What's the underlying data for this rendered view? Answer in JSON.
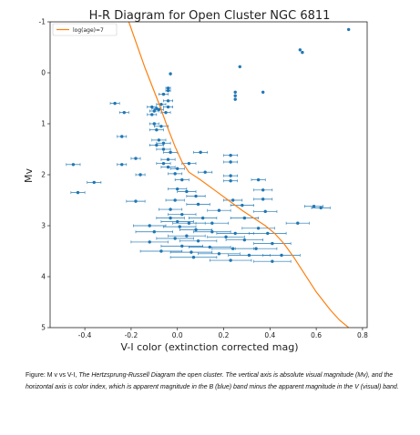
{
  "chart_data": {
    "type": "scatter",
    "title": "H-R Diagram for Open Cluster NGC 6811",
    "xlabel": "V-I color (extinction corrected mag)",
    "ylabel": "Mv",
    "xlim": [
      -0.55,
      0.82
    ],
    "ylim": [
      5,
      -1
    ],
    "y_inverted": true,
    "x_ticks": [
      "-0.4",
      "-0.2",
      "0.0",
      "0.2",
      "0.4",
      "0.6",
      "0.8"
    ],
    "y_ticks": [
      "-1",
      "0",
      "1",
      "2",
      "3",
      "4",
      "5"
    ],
    "grid": false,
    "legend_position": "top-left",
    "colors": {
      "points": "#1f77b4",
      "isochrone": "#ff7f0e"
    },
    "isochrone": {
      "name": "log(age)=7",
      "x": [
        -0.21,
        -0.14,
        -0.08,
        -0.04,
        -0.01,
        0.02,
        0.05,
        0.1,
        0.16,
        0.22,
        0.28,
        0.33,
        0.38,
        0.42,
        0.46,
        0.5,
        0.55,
        0.6,
        0.66,
        0.7,
        0.74
      ],
      "y": [
        -1.0,
        -0.1,
        0.6,
        1.1,
        1.45,
        1.75,
        1.95,
        2.1,
        2.3,
        2.5,
        2.7,
        2.85,
        3.0,
        3.15,
        3.35,
        3.6,
        3.95,
        4.3,
        4.65,
        4.85,
        5.0
      ]
    },
    "points": [
      {
        "x": 0.74,
        "y": -0.85,
        "xerr": 0.0
      },
      {
        "x": 0.53,
        "y": -0.45,
        "xerr": 0.0
      },
      {
        "x": 0.54,
        "y": -0.4,
        "xerr": 0.0
      },
      {
        "x": 0.27,
        "y": -0.12,
        "xerr": 0.0
      },
      {
        "x": -0.03,
        "y": 0.02,
        "xerr": 0.0
      },
      {
        "x": 0.25,
        "y": 0.38,
        "xerr": 0.0
      },
      {
        "x": 0.25,
        "y": 0.45,
        "xerr": 0.0
      },
      {
        "x": 0.25,
        "y": 0.52,
        "xerr": 0.0
      },
      {
        "x": 0.37,
        "y": 0.38,
        "xerr": 0.0
      },
      {
        "x": -0.04,
        "y": 0.3,
        "xerr": 0.01
      },
      {
        "x": -0.04,
        "y": 0.35,
        "xerr": 0.01
      },
      {
        "x": -0.06,
        "y": 0.42,
        "xerr": 0.02
      },
      {
        "x": -0.04,
        "y": 0.55,
        "xerr": 0.02
      },
      {
        "x": -0.07,
        "y": 0.62,
        "xerr": 0.02
      },
      {
        "x": -0.04,
        "y": 0.67,
        "xerr": 0.02
      },
      {
        "x": -0.11,
        "y": 0.67,
        "xerr": 0.02
      },
      {
        "x": -0.09,
        "y": 0.7,
        "xerr": 0.02
      },
      {
        "x": -0.08,
        "y": 0.72,
        "xerr": 0.02
      },
      {
        "x": -0.1,
        "y": 0.75,
        "xerr": 0.02
      },
      {
        "x": -0.05,
        "y": 0.78,
        "xerr": 0.02
      },
      {
        "x": -0.11,
        "y": 0.82,
        "xerr": 0.02
      },
      {
        "x": -0.27,
        "y": 0.6,
        "xerr": 0.02
      },
      {
        "x": -0.23,
        "y": 0.78,
        "xerr": 0.02
      },
      {
        "x": -0.1,
        "y": 1.0,
        "xerr": 0.02
      },
      {
        "x": -0.07,
        "y": 1.05,
        "xerr": 0.03
      },
      {
        "x": -0.09,
        "y": 1.12,
        "xerr": 0.03
      },
      {
        "x": -0.24,
        "y": 1.25,
        "xerr": 0.02
      },
      {
        "x": -0.08,
        "y": 1.32,
        "xerr": 0.03
      },
      {
        "x": -0.06,
        "y": 1.38,
        "xerr": 0.03
      },
      {
        "x": -0.09,
        "y": 1.42,
        "xerr": 0.03
      },
      {
        "x": -0.06,
        "y": 1.5,
        "xerr": 0.03
      },
      {
        "x": -0.03,
        "y": 1.56,
        "xerr": 0.03
      },
      {
        "x": 0.1,
        "y": 1.56,
        "xerr": 0.03
      },
      {
        "x": 0.23,
        "y": 1.62,
        "xerr": 0.03
      },
      {
        "x": -0.18,
        "y": 1.68,
        "xerr": 0.02
      },
      {
        "x": -0.04,
        "y": 1.7,
        "xerr": 0.03
      },
      {
        "x": -0.06,
        "y": 1.78,
        "xerr": 0.03
      },
      {
        "x": 0.05,
        "y": 1.78,
        "xerr": 0.03
      },
      {
        "x": 0.23,
        "y": 1.75,
        "xerr": 0.03
      },
      {
        "x": -0.24,
        "y": 1.8,
        "xerr": 0.02
      },
      {
        "x": -0.04,
        "y": 1.85,
        "xerr": 0.03
      },
      {
        "x": 0.0,
        "y": 1.88,
        "xerr": 0.03
      },
      {
        "x": -0.01,
        "y": 1.98,
        "xerr": 0.03
      },
      {
        "x": 0.12,
        "y": 1.95,
        "xerr": 0.03
      },
      {
        "x": 0.23,
        "y": 2.02,
        "xerr": 0.03
      },
      {
        "x": -0.16,
        "y": 2.0,
        "xerr": 0.02
      },
      {
        "x": -0.45,
        "y": 1.8,
        "xerr": 0.03
      },
      {
        "x": -0.36,
        "y": 2.15,
        "xerr": 0.03
      },
      {
        "x": 0.02,
        "y": 2.1,
        "xerr": 0.03
      },
      {
        "x": 0.23,
        "y": 2.12,
        "xerr": 0.03
      },
      {
        "x": 0.35,
        "y": 2.1,
        "xerr": 0.03
      },
      {
        "x": -0.43,
        "y": 2.35,
        "xerr": 0.03
      },
      {
        "x": 0.0,
        "y": 2.28,
        "xerr": 0.04
      },
      {
        "x": 0.04,
        "y": 2.33,
        "xerr": 0.04
      },
      {
        "x": 0.37,
        "y": 2.3,
        "xerr": 0.04
      },
      {
        "x": 0.08,
        "y": 2.42,
        "xerr": 0.04
      },
      {
        "x": -0.01,
        "y": 2.5,
        "xerr": 0.04
      },
      {
        "x": 0.24,
        "y": 2.5,
        "xerr": 0.04
      },
      {
        "x": 0.37,
        "y": 2.48,
        "xerr": 0.04
      },
      {
        "x": -0.18,
        "y": 2.52,
        "xerr": 0.04
      },
      {
        "x": 0.09,
        "y": 2.58,
        "xerr": 0.05
      },
      {
        "x": 0.28,
        "y": 2.6,
        "xerr": 0.05
      },
      {
        "x": 0.59,
        "y": 2.62,
        "xerr": 0.04
      },
      {
        "x": 0.62,
        "y": 2.65,
        "xerr": 0.04
      },
      {
        "x": -0.03,
        "y": 2.68,
        "xerr": 0.05
      },
      {
        "x": 0.18,
        "y": 2.7,
        "xerr": 0.05
      },
      {
        "x": 0.38,
        "y": 2.72,
        "xerr": 0.05
      },
      {
        "x": 0.02,
        "y": 2.78,
        "xerr": 0.06
      },
      {
        "x": -0.03,
        "y": 2.85,
        "xerr": 0.06
      },
      {
        "x": 0.11,
        "y": 2.85,
        "xerr": 0.06
      },
      {
        "x": 0.29,
        "y": 2.85,
        "xerr": 0.06
      },
      {
        "x": 0.0,
        "y": 2.92,
        "xerr": 0.07
      },
      {
        "x": 0.05,
        "y": 2.95,
        "xerr": 0.07
      },
      {
        "x": 0.15,
        "y": 2.95,
        "xerr": 0.07
      },
      {
        "x": 0.52,
        "y": 2.95,
        "xerr": 0.05
      },
      {
        "x": -0.12,
        "y": 3.0,
        "xerr": 0.07
      },
      {
        "x": 0.01,
        "y": 3.02,
        "xerr": 0.07
      },
      {
        "x": 0.35,
        "y": 3.05,
        "xerr": 0.07
      },
      {
        "x": 0.08,
        "y": 3.08,
        "xerr": 0.07
      },
      {
        "x": -0.1,
        "y": 3.12,
        "xerr": 0.08
      },
      {
        "x": 0.15,
        "y": 3.12,
        "xerr": 0.08
      },
      {
        "x": 0.25,
        "y": 3.15,
        "xerr": 0.08
      },
      {
        "x": 0.39,
        "y": 3.15,
        "xerr": 0.08
      },
      {
        "x": 0.04,
        "y": 3.2,
        "xerr": 0.08
      },
      {
        "x": -0.01,
        "y": 3.25,
        "xerr": 0.08
      },
      {
        "x": 0.21,
        "y": 3.22,
        "xerr": 0.08
      },
      {
        "x": 0.29,
        "y": 3.28,
        "xerr": 0.08
      },
      {
        "x": -0.12,
        "y": 3.32,
        "xerr": 0.08
      },
      {
        "x": 0.09,
        "y": 3.3,
        "xerr": 0.08
      },
      {
        "x": 0.41,
        "y": 3.35,
        "xerr": 0.08
      },
      {
        "x": 0.02,
        "y": 3.4,
        "xerr": 0.09
      },
      {
        "x": 0.14,
        "y": 3.42,
        "xerr": 0.09
      },
      {
        "x": 0.24,
        "y": 3.45,
        "xerr": 0.09
      },
      {
        "x": 0.34,
        "y": 3.45,
        "xerr": 0.09
      },
      {
        "x": -0.07,
        "y": 3.5,
        "xerr": 0.09
      },
      {
        "x": 0.06,
        "y": 3.52,
        "xerr": 0.09
      },
      {
        "x": 0.18,
        "y": 3.55,
        "xerr": 0.09
      },
      {
        "x": 0.31,
        "y": 3.58,
        "xerr": 0.09
      },
      {
        "x": 0.45,
        "y": 3.58,
        "xerr": 0.08
      },
      {
        "x": 0.07,
        "y": 3.62,
        "xerr": 0.1
      },
      {
        "x": 0.23,
        "y": 3.68,
        "xerr": 0.09
      },
      {
        "x": 0.41,
        "y": 3.7,
        "xerr": 0.08
      }
    ]
  },
  "caption": {
    "lead": "Figure:  M v vs V-I, ",
    "body": "The Hertzsprung-Russell Diagram the open cluster.  The vertical axis is absolute visual magnitude (Mv), and the horizontal axis is color index, which is apparent magnitude in the B (blue) band minus the apparent magnitude in the V (visual) band."
  }
}
